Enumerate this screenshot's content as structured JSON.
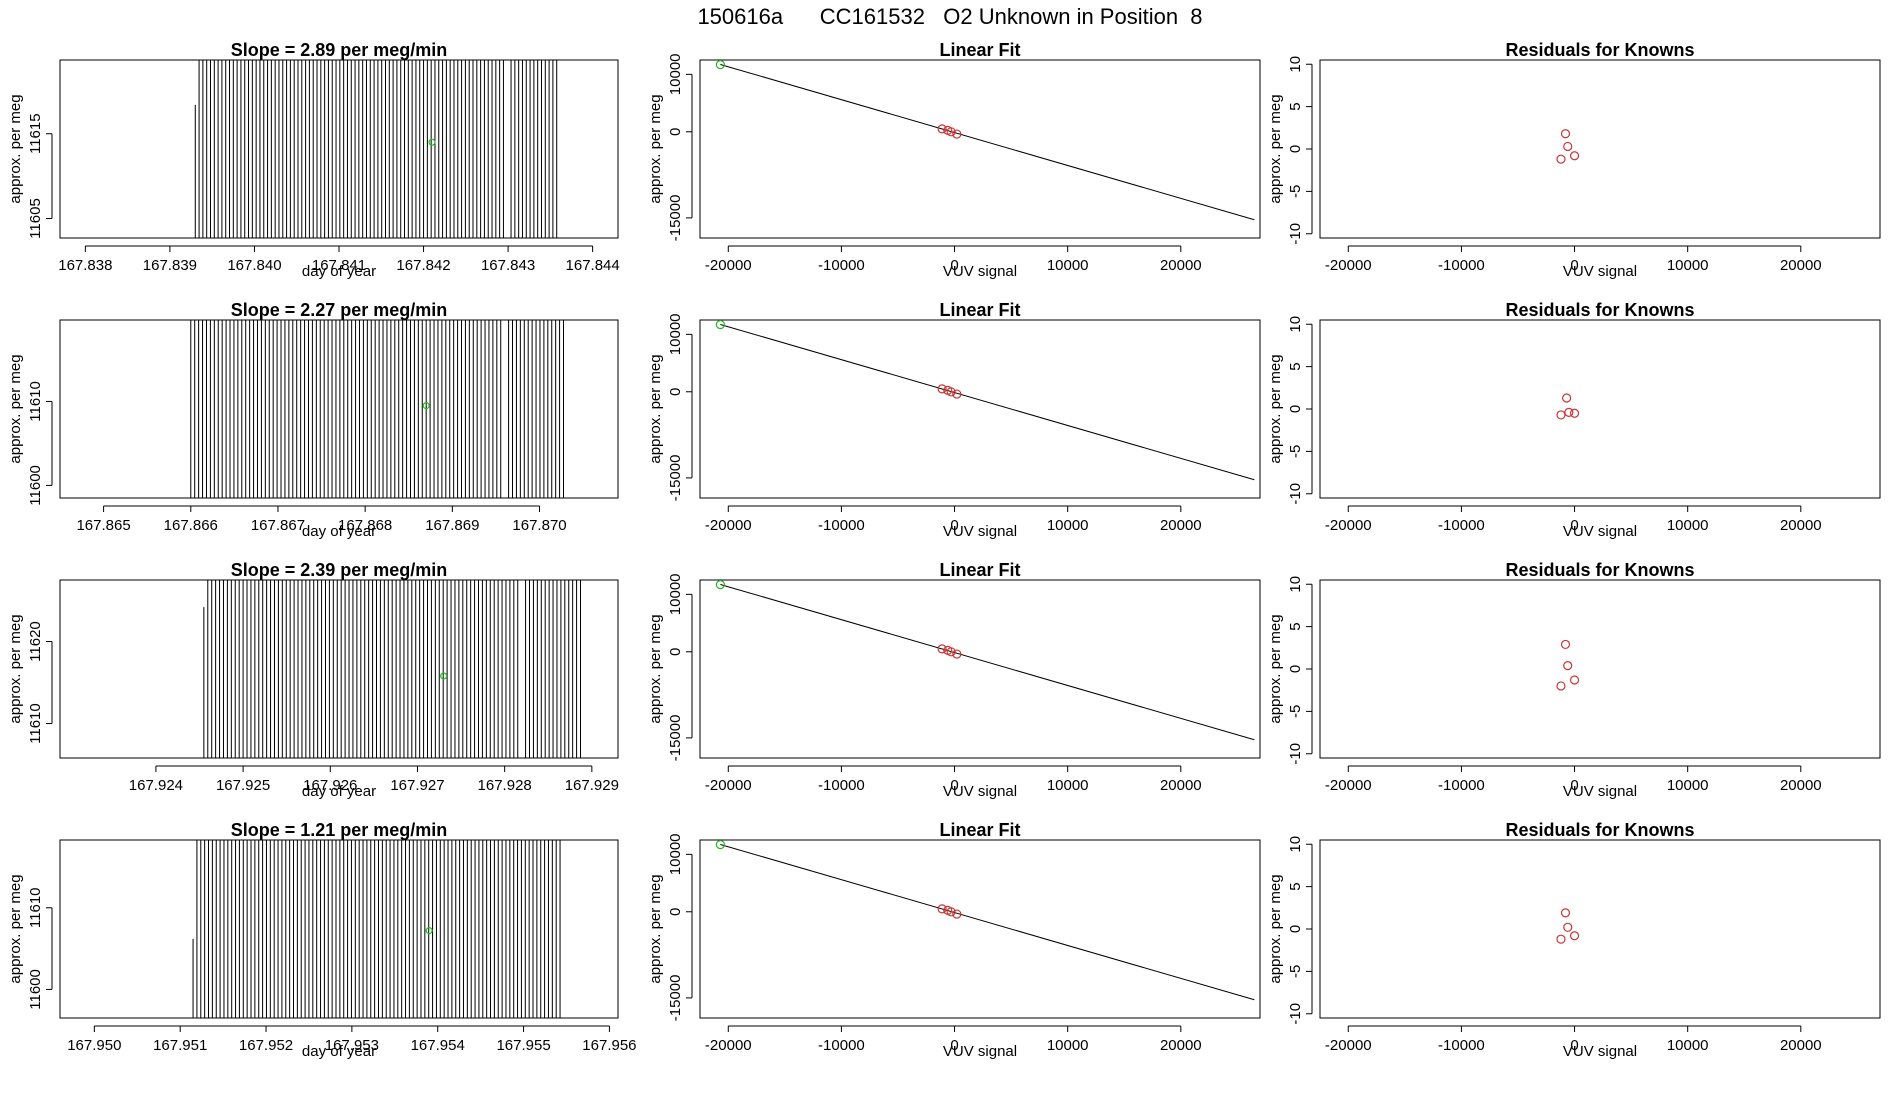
{
  "page_title": "150616a      CC161532   O2 Unknown in Position  8",
  "colors": {
    "axis": "#000000",
    "trace": "#000000",
    "known": "#cc3333",
    "unknown": "#22bb22",
    "fit_line": "#000000"
  },
  "chart_data": [
    {
      "row": 1,
      "panel": "time-series",
      "type": "line",
      "title": "Slope =  2.89  per meg/min",
      "xlabel": "day of year",
      "ylabel": "approx. per meg",
      "xlim": [
        167.8377,
        167.8443
      ],
      "ylim": [
        11602.7,
        11623.7
      ],
      "xticks": [
        "167.838",
        "167.839",
        "167.840",
        "167.841",
        "167.842",
        "167.843",
        "167.844"
      ],
      "xtick_values": [
        167.838,
        167.839,
        167.84,
        167.841,
        167.842,
        167.843,
        167.844
      ],
      "yticks": [
        "11605",
        "11615"
      ],
      "ytick_values": [
        11605,
        11615
      ],
      "trace_start": 167.8393,
      "trace_end": 167.8436,
      "gap": [
        167.84298,
        167.84302
      ],
      "trace_low": 11602.7,
      "first_line_top": 11618.4,
      "unknown_point": [
        167.8421,
        11614.0
      ]
    },
    {
      "row": 1,
      "panel": "linear-fit",
      "type": "scatter",
      "title": "Linear Fit",
      "xlabel": "VUV signal",
      "ylabel": "approx. per meg",
      "xlim": [
        -22500,
        27000
      ],
      "ylim": [
        -18500,
        12500
      ],
      "xticks": [
        "-20000",
        "-10000",
        "0",
        "10000",
        "20000"
      ],
      "xtick_values": [
        -20000,
        -10000,
        0,
        10000,
        20000
      ],
      "yticks": [
        "-15000",
        "0",
        "10000"
      ],
      "ytick_values": [
        -15000,
        0,
        10000
      ],
      "fit_line": {
        "slope": -0.573,
        "intercept": -140
      },
      "known_points": [
        [
          -1100,
          500
        ],
        [
          -600,
          250
        ],
        [
          -300,
          -10
        ],
        [
          200,
          -400
        ]
      ],
      "unknown_point": [
        -20700,
        11700
      ]
    },
    {
      "row": 1,
      "panel": "residuals",
      "type": "scatter",
      "title": "Residuals for Knowns",
      "xlabel": "VUV signal",
      "ylabel": "approx. per meg",
      "xlim": [
        -22500,
        27000
      ],
      "ylim": [
        -10.5,
        10.5
      ],
      "xticks": [
        "-20000",
        "-10000",
        "0",
        "10000",
        "20000"
      ],
      "xtick_values": [
        -20000,
        -10000,
        0,
        10000,
        20000
      ],
      "yticks": [
        "-10",
        "-5",
        "0",
        "5",
        "10"
      ],
      "ytick_values": [
        -10,
        -5,
        0,
        5,
        10
      ],
      "points": [
        [
          -1200,
          -1.2
        ],
        [
          -800,
          1.8
        ],
        [
          -600,
          0.3
        ],
        [
          0,
          -0.8
        ]
      ]
    },
    {
      "row": 2,
      "panel": "time-series",
      "type": "line",
      "title": "Slope =  2.27  per meg/min",
      "xlabel": "day of year",
      "ylabel": "approx. per meg",
      "xlim": [
        167.8645,
        167.8709
      ],
      "ylim": [
        11598.5,
        11619.7
      ],
      "xticks": [
        "167.865",
        "167.866",
        "167.867",
        "167.868",
        "167.869",
        "167.870"
      ],
      "xtick_values": [
        167.865,
        167.866,
        167.867,
        167.868,
        167.869,
        167.87
      ],
      "yticks": [
        "11600",
        "11610"
      ],
      "ytick_values": [
        11600,
        11610
      ],
      "trace_start": 167.866,
      "trace_end": 167.8703,
      "gap": [
        167.86958,
        167.86962
      ],
      "trace_low": 11598.5,
      "first_line_top": 11619.7,
      "unknown_point": [
        167.8687,
        11609.5
      ]
    },
    {
      "row": 2,
      "panel": "linear-fit",
      "type": "scatter",
      "title": "Linear Fit",
      "xlabel": "VUV signal",
      "ylabel": "approx. per meg",
      "xlim": [
        -22500,
        27000
      ],
      "ylim": [
        -18500,
        12500
      ],
      "xticks": [
        "-20000",
        "-10000",
        "0",
        "10000",
        "20000"
      ],
      "xtick_values": [
        -20000,
        -10000,
        0,
        10000,
        20000
      ],
      "yticks": [
        "-15000",
        "0",
        "10000"
      ],
      "ytick_values": [
        -15000,
        0,
        10000
      ],
      "fit_line": {
        "slope": -0.573,
        "intercept": -140
      },
      "known_points": [
        [
          -1100,
          500
        ],
        [
          -600,
          250
        ],
        [
          -300,
          -10
        ],
        [
          200,
          -400
        ]
      ],
      "unknown_point": [
        -20700,
        11700
      ]
    },
    {
      "row": 2,
      "panel": "residuals",
      "type": "scatter",
      "title": "Residuals for Knowns",
      "xlabel": "VUV signal",
      "ylabel": "approx. per meg",
      "xlim": [
        -22500,
        27000
      ],
      "ylim": [
        -10.5,
        10.5
      ],
      "xticks": [
        "-20000",
        "-10000",
        "0",
        "10000",
        "20000"
      ],
      "xtick_values": [
        -20000,
        -10000,
        0,
        10000,
        20000
      ],
      "yticks": [
        "-10",
        "-5",
        "0",
        "5",
        "10"
      ],
      "ytick_values": [
        -10,
        -5,
        0,
        5,
        10
      ],
      "points": [
        [
          -1200,
          -0.7
        ],
        [
          -700,
          1.3
        ],
        [
          -500,
          -0.4
        ],
        [
          0,
          -0.5
        ]
      ]
    },
    {
      "row": 3,
      "panel": "time-series",
      "type": "line",
      "title": "Slope =  2.39  per meg/min",
      "xlabel": "day of year",
      "ylabel": "approx. per meg",
      "xlim": [
        167.9229,
        167.9293
      ],
      "ylim": [
        11605.8,
        11627.5
      ],
      "xticks": [
        "167.924",
        "167.925",
        "167.926",
        "167.927",
        "167.928",
        "167.929"
      ],
      "xtick_values": [
        167.924,
        167.925,
        167.926,
        167.927,
        167.928,
        167.929
      ],
      "yticks": [
        "11610",
        "11620"
      ],
      "ytick_values": [
        11610,
        11620
      ],
      "trace_start": 167.92455,
      "trace_end": 167.9289,
      "gap": [
        167.92818,
        167.92822
      ],
      "trace_low": 11605.8,
      "first_line_top": 11624.2,
      "unknown_point": [
        167.9273,
        11615.8
      ]
    },
    {
      "row": 3,
      "panel": "linear-fit",
      "type": "scatter",
      "title": "Linear Fit",
      "xlabel": "VUV signal",
      "ylabel": "approx. per meg",
      "xlim": [
        -22500,
        27000
      ],
      "ylim": [
        -18500,
        12500
      ],
      "xticks": [
        "-20000",
        "-10000",
        "0",
        "10000",
        "20000"
      ],
      "xtick_values": [
        -20000,
        -10000,
        0,
        10000,
        20000
      ],
      "yticks": [
        "-15000",
        "0",
        "10000"
      ],
      "ytick_values": [
        -15000,
        0,
        10000
      ],
      "fit_line": {
        "slope": -0.573,
        "intercept": -140
      },
      "known_points": [
        [
          -1100,
          500
        ],
        [
          -600,
          250
        ],
        [
          -300,
          -10
        ],
        [
          200,
          -400
        ]
      ],
      "unknown_point": [
        -20700,
        11700
      ]
    },
    {
      "row": 3,
      "panel": "residuals",
      "type": "scatter",
      "title": "Residuals for Knowns",
      "xlabel": "VUV signal",
      "ylabel": "approx. per meg",
      "xlim": [
        -22500,
        27000
      ],
      "ylim": [
        -10.5,
        10.5
      ],
      "xticks": [
        "-20000",
        "-10000",
        "0",
        "10000",
        "20000"
      ],
      "xtick_values": [
        -20000,
        -10000,
        0,
        10000,
        20000
      ],
      "yticks": [
        "-10",
        "-5",
        "0",
        "5",
        "10"
      ],
      "ytick_values": [
        -10,
        -5,
        0,
        5,
        10
      ],
      "points": [
        [
          -1200,
          -2.0
        ],
        [
          -800,
          2.9
        ],
        [
          -600,
          0.4
        ],
        [
          0,
          -1.3
        ]
      ]
    },
    {
      "row": 4,
      "panel": "time-series",
      "type": "line",
      "title": "Slope =  1.21  per meg/min",
      "xlabel": "day of year",
      "ylabel": "approx. per meg",
      "xlim": [
        167.9496,
        167.9561
      ],
      "ylim": [
        11596.5,
        11618.3
      ],
      "xticks": [
        "167.950",
        "167.951",
        "167.952",
        "167.953",
        "167.954",
        "167.955",
        "167.956"
      ],
      "xtick_values": [
        167.95,
        167.951,
        167.952,
        167.953,
        167.954,
        167.955,
        167.956
      ],
      "yticks": [
        "11600",
        "11610"
      ],
      "ytick_values": [
        11600,
        11610
      ],
      "trace_start": 167.95115,
      "trace_end": 167.95545,
      "gap": [
        167.95498,
        167.95502
      ],
      "trace_low": 11596.5,
      "first_line_top": 11606.2,
      "unknown_point": [
        167.9539,
        11607.2
      ]
    },
    {
      "row": 4,
      "panel": "linear-fit",
      "type": "scatter",
      "title": "Linear Fit",
      "xlabel": "VUV signal",
      "ylabel": "approx. per meg",
      "xlim": [
        -22500,
        27000
      ],
      "ylim": [
        -18500,
        12500
      ],
      "xticks": [
        "-20000",
        "-10000",
        "0",
        "10000",
        "20000"
      ],
      "xtick_values": [
        -20000,
        -10000,
        0,
        10000,
        20000
      ],
      "yticks": [
        "-15000",
        "0",
        "10000"
      ],
      "ytick_values": [
        -15000,
        0,
        10000
      ],
      "fit_line": {
        "slope": -0.573,
        "intercept": -140
      },
      "known_points": [
        [
          -1100,
          500
        ],
        [
          -600,
          250
        ],
        [
          -300,
          -10
        ],
        [
          200,
          -400
        ]
      ],
      "unknown_point": [
        -20700,
        11700
      ]
    },
    {
      "row": 4,
      "panel": "residuals",
      "type": "scatter",
      "title": "Residuals for Knowns",
      "xlabel": "VUV signal",
      "ylabel": "approx. per meg",
      "xlim": [
        -22500,
        27000
      ],
      "ylim": [
        -10.5,
        10.5
      ],
      "xticks": [
        "-20000",
        "-10000",
        "0",
        "10000",
        "20000"
      ],
      "xtick_values": [
        -20000,
        -10000,
        0,
        10000,
        20000
      ],
      "yticks": [
        "-10",
        "-5",
        "0",
        "5",
        "10"
      ],
      "ytick_values": [
        -10,
        -5,
        0,
        5,
        10
      ],
      "points": [
        [
          -1200,
          -1.2
        ],
        [
          -800,
          1.9
        ],
        [
          -600,
          0.2
        ],
        [
          0,
          -0.8
        ]
      ]
    }
  ]
}
